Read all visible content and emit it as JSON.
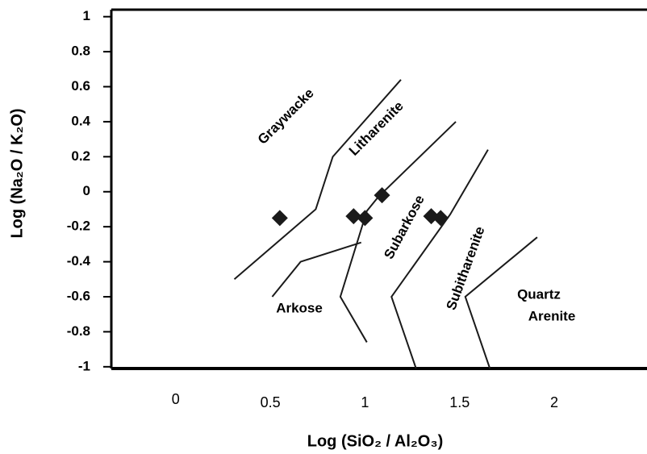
{
  "chart_data": {
    "type": "scatter",
    "xlabel": "Log (SiO₂ / Al₂O₃)",
    "ylabel": "Log (Na₂O / K₂O)",
    "xlim": [
      -0.34,
      2.49
    ],
    "ylim": [
      -1.01,
      1.04
    ],
    "xticks": [
      0,
      0.5,
      1,
      1.5,
      2
    ],
    "yticks": [
      1,
      0.8,
      0.6,
      0.4,
      0.2,
      0,
      -0.2,
      -0.4,
      -0.6,
      -0.8,
      -1
    ],
    "color": "#1a1a1a",
    "points": {
      "x": [
        0.55,
        0.94,
        1.0,
        1.09,
        1.35,
        1.4
      ],
      "y": [
        -0.15,
        -0.14,
        -0.15,
        -0.02,
        -0.14,
        -0.15
      ]
    },
    "boundaries": [
      {
        "x": [
          0.31,
          0.74,
          0.83,
          1.19
        ],
        "y": [
          -0.5,
          -0.1,
          0.2,
          0.64
        ]
      },
      {
        "x": [
          0.51,
          0.66,
          0.98
        ],
        "y": [
          -0.6,
          -0.4,
          -0.29
        ]
      },
      {
        "x": [
          1.01,
          0.87,
          1.01,
          1.07,
          1.48
        ],
        "y": [
          -0.86,
          -0.6,
          -0.11,
          -0.03,
          0.4
        ]
      },
      {
        "x": [
          1.27,
          1.14,
          1.45,
          1.65
        ],
        "y": [
          -1.01,
          -0.6,
          -0.13,
          0.24
        ]
      },
      {
        "x": [
          1.66,
          1.53,
          1.91
        ],
        "y": [
          -1.01,
          -0.6,
          -0.26
        ]
      }
    ],
    "annotations": [
      "Graywacke",
      "Litharenite",
      "Subarkose",
      "Subitharenite",
      "Arkose",
      "Quartz",
      "Arenite"
    ]
  }
}
